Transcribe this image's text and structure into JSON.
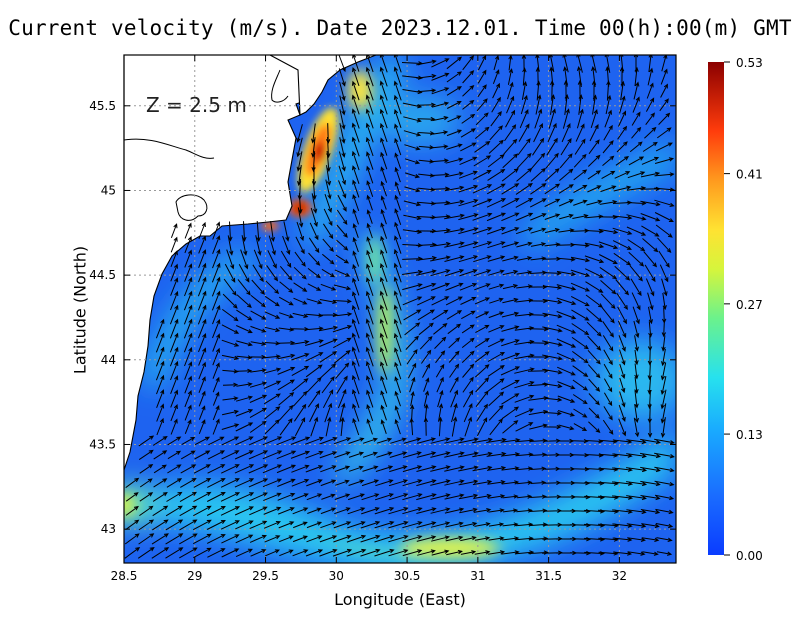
{
  "title": "Current velocity (m/s). Date 2023.12.01. Time 00(h):00(m) GMT",
  "depth_label": "Z = 2.5 m",
  "x_axis": {
    "label": "Longitude (East)",
    "ticks": [
      "28.5",
      "29",
      "29.5",
      "30",
      "30.5",
      "31",
      "31.5",
      "32"
    ]
  },
  "y_axis": {
    "label": "Latitude (North)",
    "ticks": [
      "43",
      "43.5",
      "44",
      "44.5",
      "45",
      "45.5"
    ]
  },
  "colorbar": {
    "ticks": [
      "0.53",
      "0.41",
      "0.27",
      "0.13",
      "0.00"
    ]
  },
  "chart_data": {
    "type": "heatmap",
    "variable": "Current velocity",
    "units": "m/s",
    "date": "2023.12.01",
    "time": "00(h):00(m) GMT",
    "depth_m": 2.5,
    "xlim": [
      28.5,
      32.4
    ],
    "ylim": [
      42.8,
      45.8
    ],
    "color_range": [
      0.0,
      0.53
    ],
    "colorbar_ticks": [
      0.53,
      0.41,
      0.27,
      0.13,
      0.0
    ],
    "grid": true,
    "legend_placement": "right",
    "high_speed_features": [
      {
        "lon": 29.85,
        "lat": 45.2,
        "speed": 0.53
      },
      {
        "lon": 29.7,
        "lat": 44.9,
        "speed": 0.48
      },
      {
        "lon": 29.5,
        "lat": 44.8,
        "speed": 0.45
      },
      {
        "lon": 30.6,
        "lat": 42.95,
        "speed": 0.3
      },
      {
        "lon": 30.3,
        "lat": 44.0,
        "speed": 0.27
      },
      {
        "lon": 28.5,
        "lat": 43.2,
        "speed": 0.3
      }
    ]
  }
}
